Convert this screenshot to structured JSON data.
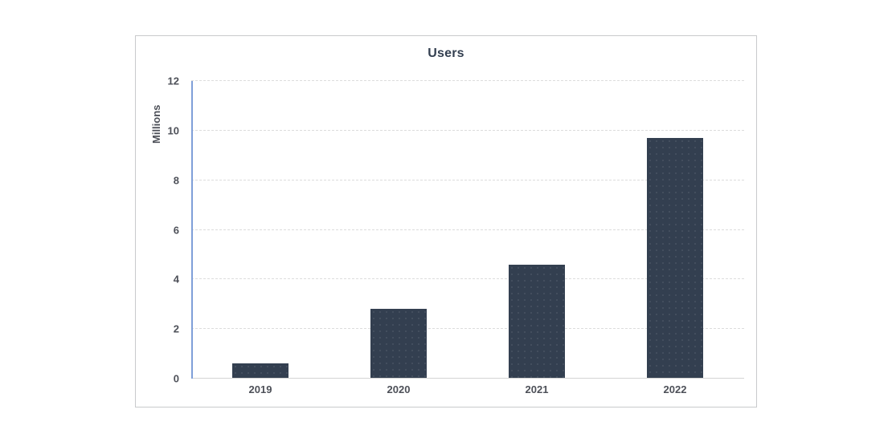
{
  "chart_data": {
    "type": "bar",
    "title": "Users",
    "categories": [
      "2019",
      "2020",
      "2021",
      "2022"
    ],
    "values": [
      0.6,
      2.8,
      4.6,
      9.7
    ],
    "xlabel": "",
    "ylabel": "Millions",
    "ylim": [
      0,
      12
    ],
    "ytick_step": 2,
    "yticks": [
      0,
      2,
      4,
      6,
      8,
      10,
      12
    ],
    "grid": true,
    "legend": false,
    "bar_color": "#333f50"
  },
  "colors": {
    "background": "#ffffff",
    "card_border": "#c9cacc",
    "title_text": "#333f50",
    "tick_text": "#4d5058",
    "bar": "#333f50",
    "axis_line": "#7f9fd8",
    "gridline": "#dcdcdc",
    "baseline": "#d3d3d3"
  }
}
